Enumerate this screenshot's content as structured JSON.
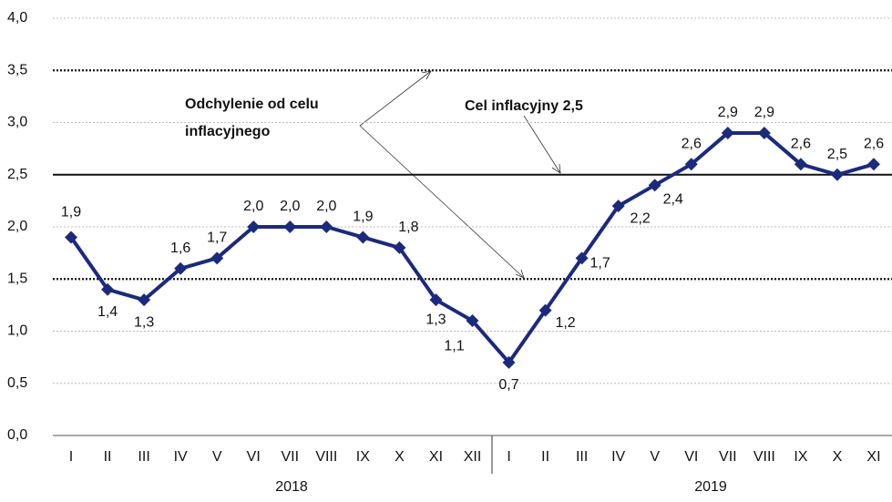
{
  "chart_data": {
    "type": "line",
    "categories": [
      "I",
      "II",
      "III",
      "IV",
      "V",
      "VI",
      "VII",
      "VIII",
      "IX",
      "X",
      "XI",
      "XII",
      "I",
      "II",
      "III",
      "IV",
      "V",
      "VI",
      "VII",
      "VIII",
      "IX",
      "X",
      "XI"
    ],
    "group_labels": [
      "2018",
      "2019"
    ],
    "series": [
      {
        "color": "#1c2a7c",
        "values": [
          1.9,
          1.4,
          1.3,
          1.6,
          1.7,
          2.0,
          2.0,
          2.0,
          1.9,
          1.8,
          1.3,
          1.1,
          0.7,
          1.2,
          1.7,
          2.2,
          2.4,
          2.6,
          2.9,
          2.9,
          2.6,
          2.5,
          2.6
        ],
        "value_labels": [
          "1,9",
          "1,4",
          "1,3",
          "1,6",
          "1,7",
          "2,0",
          "2,0",
          "2,0",
          "1,9",
          "1,8",
          "1,3",
          "1,1",
          "0,7",
          "1,2",
          "1,7",
          "2,2",
          "2,4",
          "2,6",
          "2,9",
          "2,9",
          "2,6",
          "2,5",
          "2,6"
        ]
      }
    ],
    "ylim": [
      0,
      4
    ],
    "yticks": [
      {
        "value": 0,
        "label": "0,0"
      },
      {
        "value": 0.5,
        "label": "0,5"
      },
      {
        "value": 1,
        "label": "1,0"
      },
      {
        "value": 1.5,
        "label": "1,5"
      },
      {
        "value": 2,
        "label": "2,0"
      },
      {
        "value": 2.5,
        "label": "2,5"
      },
      {
        "value": 3,
        "label": "3,0"
      },
      {
        "value": 3.5,
        "label": "3,5"
      },
      {
        "value": 4,
        "label": "4,0"
      }
    ],
    "grid": true,
    "target": 2.5,
    "tolerance_band": [
      1.5,
      3.5
    ],
    "annotations": {
      "deviation": [
        "Odchylenie od celu",
        "inflacyjnego"
      ],
      "target": "Cel inflacyjny 2,5"
    }
  }
}
